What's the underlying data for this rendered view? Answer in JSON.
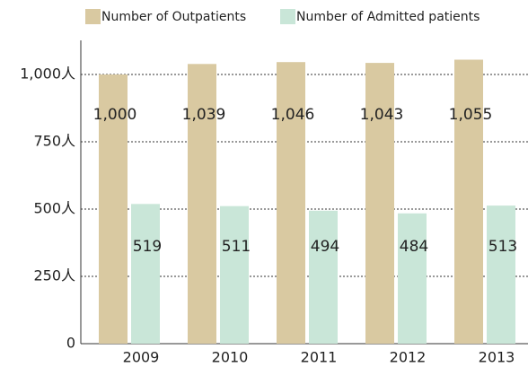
{
  "chart_data": {
    "type": "bar",
    "categories": [
      "2009",
      "2010",
      "2011",
      "2012",
      "2013"
    ],
    "series": [
      {
        "name": "Number of Outpatients",
        "color": "#d9c9a1",
        "values": [
          1000,
          1039,
          1046,
          1043,
          1055
        ],
        "value_labels": [
          "1,000",
          "1,039",
          "1,046",
          "1,043",
          "1,055"
        ]
      },
      {
        "name": "Number of Admitted patients",
        "color": "#c9e6d8",
        "values": [
          519,
          511,
          494,
          484,
          513
        ]
      }
    ],
    "ylim": [
      0,
      1100
    ],
    "yticks": [
      0,
      {
        "value": 250,
        "label": "250人"
      },
      {
        "value": 500,
        "label": "500人"
      },
      {
        "value": 750,
        "label": "750人"
      },
      {
        "value": 1000,
        "label": "1,000人"
      }
    ],
    "grid": true
  }
}
